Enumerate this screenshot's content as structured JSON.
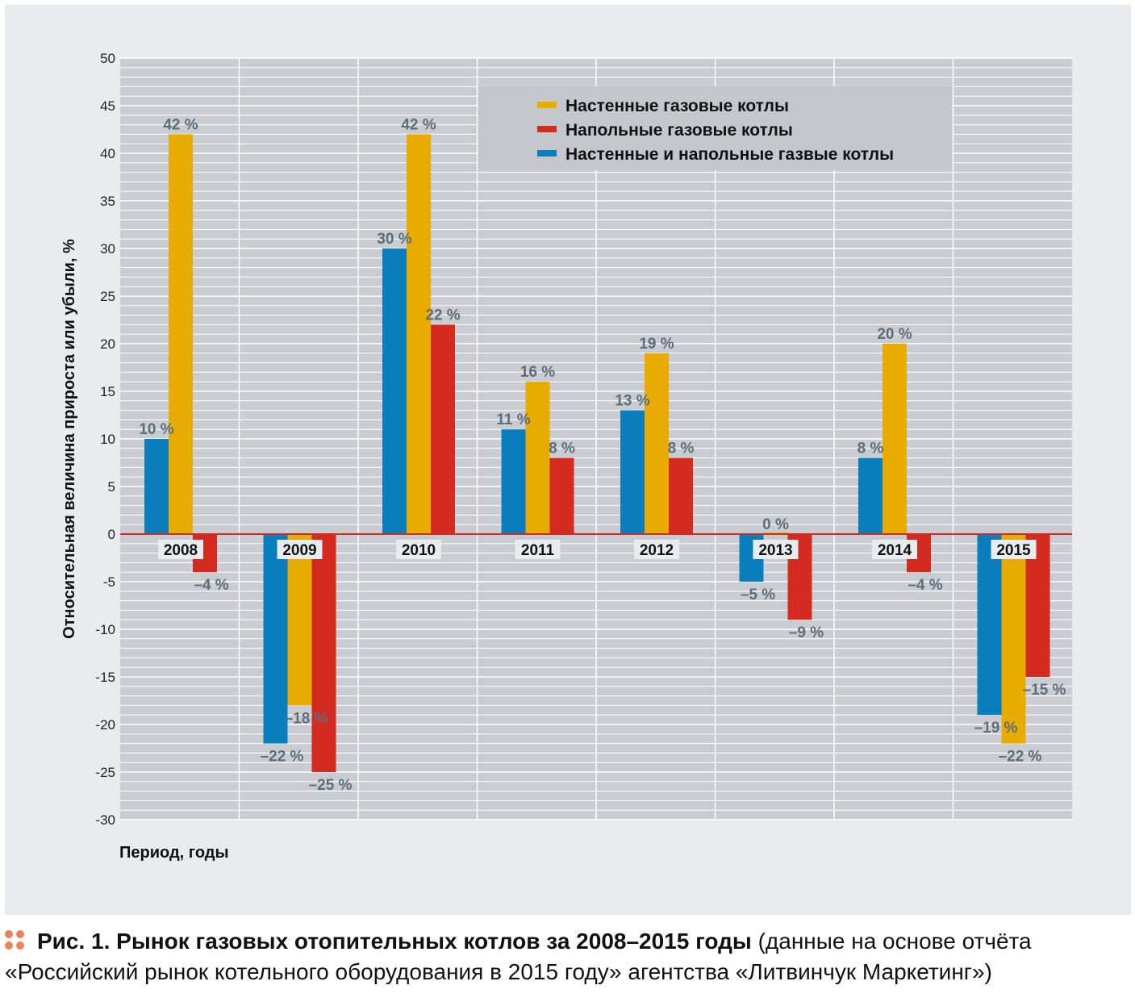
{
  "chart_data": {
    "type": "bar",
    "categories": [
      "2008",
      "2009",
      "2010",
      "2011",
      "2012",
      "2013",
      "2014",
      "2015"
    ],
    "series": [
      {
        "name": "Настенные и напольные газвые котлы",
        "color": "#0a7ebd",
        "values": [
          10,
          -22,
          30,
          11,
          13,
          -5,
          8,
          -19
        ],
        "labels": [
          "10 %",
          "–22 %",
          "30 %",
          "11 %",
          "13 %",
          "–5 %",
          "8 %",
          "–19 %"
        ]
      },
      {
        "name": "Настенные газовые котлы",
        "color": "#e8ac00",
        "values": [
          42,
          -18,
          42,
          16,
          19,
          0,
          20,
          -22
        ],
        "labels": [
          "42 %",
          "–18 %",
          "42 %",
          "16 %",
          "19 %",
          "0 %",
          "20 %",
          "–22 %"
        ]
      },
      {
        "name": "Напольные газовые котлы",
        "color": "#d42a1f",
        "values": [
          -4,
          -25,
          22,
          8,
          8,
          -9,
          -4,
          -15
        ],
        "labels": [
          "–4 %",
          "–25 %",
          "22 %",
          "8 %",
          "8 %",
          "–9 %",
          "–4 %",
          "–15 %"
        ]
      }
    ],
    "legend_order": [
      1,
      2,
      0
    ],
    "legend_position": "top-right",
    "ylim": [
      -30,
      50
    ],
    "yticks": [
      "50",
      "45",
      "40",
      "35",
      "30",
      "25",
      "20",
      "15",
      "10",
      "5",
      "0",
      "-5",
      "-10",
      "-15",
      "-20",
      "-25",
      "-30"
    ],
    "ylabel": "Относительная величина прироста или убыли, %",
    "xlabel": "Период, годы",
    "grid": true,
    "zero_line_color": "#d42a1f",
    "background_color": "#e9ecee",
    "plot_background_color": "#c9cdd2"
  },
  "caption": {
    "bullet_icon": "four-dots-icon",
    "bullet_color": "#e8835a",
    "bold": "Рис. 1. Рынок газовых отопительных котлов за 2008–2015 годы",
    "normal": " (данные на основе отчёта «Российский рынок котельного оборудования в 2015 году» агентства «Литвинчук Маркетинг»)"
  }
}
